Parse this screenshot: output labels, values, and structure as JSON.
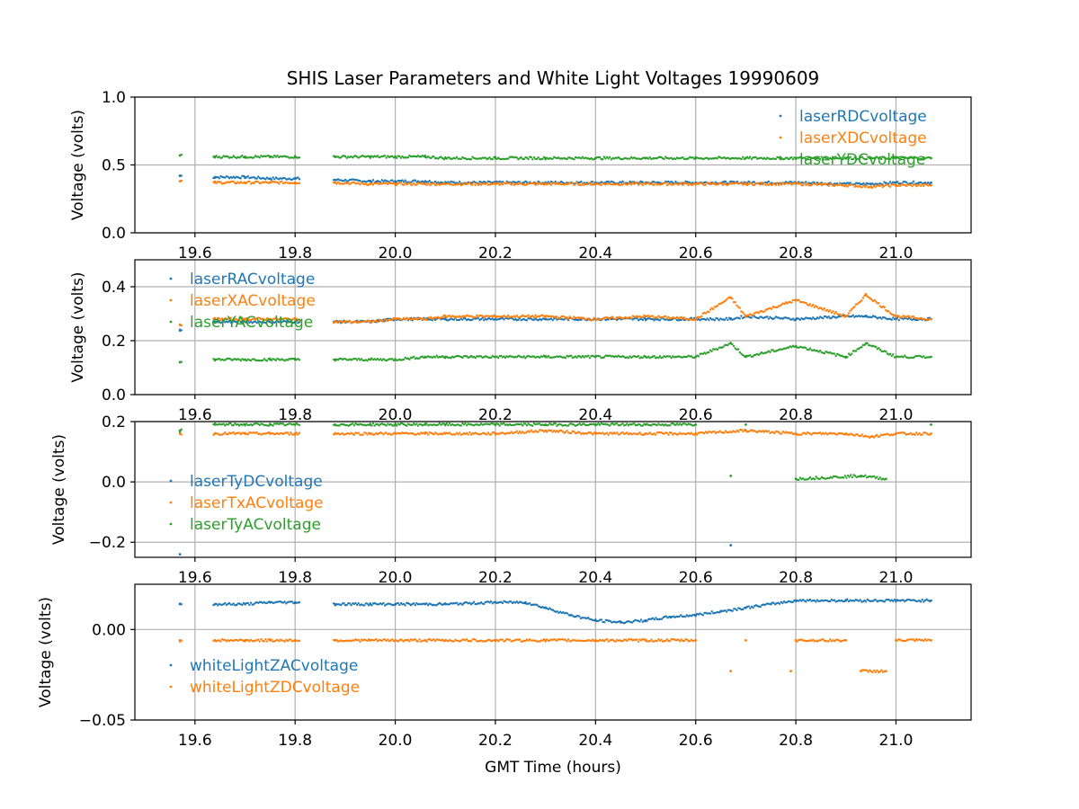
{
  "chart_data": {
    "type": "scatter",
    "title": "SHIS Laser Parameters and White Light Voltages 19990609",
    "xlabel": "GMT Time (hours)",
    "xlim": [
      19.48,
      21.15
    ],
    "xticks": [
      "19.6",
      "19.8",
      "20.0",
      "20.2",
      "20.4",
      "20.6",
      "20.8",
      "21.0"
    ],
    "xtick_values": [
      19.6,
      19.8,
      20.0,
      20.2,
      20.4,
      20.6,
      20.8,
      21.0
    ],
    "grid": true,
    "panels": [
      {
        "ylabel": "Voltage (volts)",
        "ylim": [
          0.0,
          1.0
        ],
        "yticks": [
          "0.0",
          "0.5",
          "1.0"
        ],
        "ytick_values": [
          0.0,
          0.5,
          1.0
        ],
        "legend_position": "upper-right",
        "series": [
          {
            "name": "laserRDCvoltage",
            "color": "#1f77b4",
            "x": [
              19.57,
              19.64,
              19.7,
              19.75,
              19.8,
              19.88,
              19.95,
              20.0,
              20.06,
              20.1,
              20.2,
              20.3,
              20.4,
              20.5,
              20.6,
              20.7,
              20.8,
              20.9,
              20.95,
              21.0,
              21.07
            ],
            "y": [
              0.42,
              0.41,
              0.41,
              0.4,
              0.4,
              0.39,
              0.38,
              0.38,
              0.38,
              0.37,
              0.37,
              0.37,
              0.37,
              0.37,
              0.37,
              0.37,
              0.37,
              0.36,
              0.36,
              0.37,
              0.37
            ]
          },
          {
            "name": "laserXDCvoltage",
            "color": "#ff7f0e",
            "x": [
              19.57,
              19.64,
              19.7,
              19.75,
              19.8,
              19.88,
              19.95,
              20.0,
              20.06,
              20.1,
              20.2,
              20.3,
              20.4,
              20.5,
              20.6,
              20.7,
              20.8,
              20.9,
              20.95,
              21.0,
              21.07
            ],
            "y": [
              0.38,
              0.37,
              0.37,
              0.37,
              0.37,
              0.37,
              0.36,
              0.36,
              0.36,
              0.36,
              0.36,
              0.36,
              0.36,
              0.36,
              0.36,
              0.36,
              0.36,
              0.35,
              0.34,
              0.35,
              0.35
            ]
          },
          {
            "name": "laserYDCvoltage",
            "color": "#2ca02c",
            "x": [
              19.57,
              19.64,
              19.7,
              19.75,
              19.8,
              19.88,
              19.95,
              20.0,
              20.06,
              20.1,
              20.2,
              20.3,
              20.4,
              20.5,
              20.6,
              20.7,
              20.8,
              20.9,
              20.95,
              21.0,
              21.07
            ],
            "y": [
              0.57,
              0.56,
              0.56,
              0.56,
              0.56,
              0.56,
              0.56,
              0.56,
              0.56,
              0.55,
              0.55,
              0.55,
              0.55,
              0.55,
              0.55,
              0.55,
              0.55,
              0.55,
              0.55,
              0.55,
              0.55
            ]
          }
        ]
      },
      {
        "ylabel": "Voltage (volts)",
        "ylim": [
          0.0,
          0.5
        ],
        "yticks": [
          "0.0",
          "0.2",
          "0.4"
        ],
        "ytick_values": [
          0.0,
          0.2,
          0.4
        ],
        "legend_position": "upper-left",
        "series": [
          {
            "name": "laserRACvoltage",
            "color": "#1f77b4",
            "x": [
              19.57,
              19.64,
              19.7,
              19.75,
              19.8,
              19.88,
              19.95,
              20.0,
              20.06,
              20.1,
              20.2,
              20.3,
              20.4,
              20.5,
              20.6,
              20.67,
              20.7,
              20.8,
              20.9,
              20.94,
              21.0,
              21.07
            ],
            "y": [
              0.24,
              0.27,
              0.27,
              0.27,
              0.27,
              0.27,
              0.27,
              0.28,
              0.28,
              0.28,
              0.28,
              0.28,
              0.28,
              0.28,
              0.28,
              0.28,
              0.29,
              0.28,
              0.29,
              0.29,
              0.28,
              0.28
            ]
          },
          {
            "name": "laserXACvoltage",
            "color": "#ff7f0e",
            "x": [
              19.57,
              19.64,
              19.7,
              19.75,
              19.8,
              19.88,
              19.95,
              20.0,
              20.06,
              20.1,
              20.2,
              20.3,
              20.4,
              20.5,
              20.6,
              20.67,
              20.7,
              20.8,
              20.9,
              20.94,
              21.0,
              21.07
            ],
            "y": [
              0.26,
              0.28,
              0.28,
              0.28,
              0.28,
              0.27,
              0.27,
              0.28,
              0.28,
              0.29,
              0.29,
              0.29,
              0.28,
              0.29,
              0.28,
              0.36,
              0.29,
              0.35,
              0.29,
              0.37,
              0.29,
              0.28
            ]
          },
          {
            "name": "laserYACvoltage",
            "color": "#2ca02c",
            "x": [
              19.57,
              19.64,
              19.7,
              19.75,
              19.8,
              19.88,
              19.95,
              20.0,
              20.06,
              20.1,
              20.2,
              20.3,
              20.4,
              20.5,
              20.6,
              20.67,
              20.7,
              20.8,
              20.9,
              20.94,
              21.0,
              21.07
            ],
            "y": [
              0.12,
              0.13,
              0.13,
              0.13,
              0.13,
              0.13,
              0.13,
              0.13,
              0.14,
              0.14,
              0.14,
              0.14,
              0.14,
              0.14,
              0.14,
              0.19,
              0.14,
              0.18,
              0.14,
              0.19,
              0.14,
              0.14
            ]
          }
        ]
      },
      {
        "ylabel": "Voltage (volts)",
        "ylim": [
          -0.25,
          0.2
        ],
        "yticks": [
          "−0.2",
          "0.0",
          "0.2"
        ],
        "ytick_values": [
          -0.2,
          0.0,
          0.2
        ],
        "legend_position": "lower-left",
        "series": [
          {
            "name": "laserTyDCvoltage",
            "color": "#1f77b4",
            "x": [
              19.57,
              20.67
            ],
            "y": [
              -0.24,
              -0.21
            ]
          },
          {
            "name": "laserTxACvoltage",
            "color": "#ff7f0e",
            "x": [
              19.57,
              19.64,
              19.7,
              19.75,
              19.8,
              19.88,
              19.95,
              20.0,
              20.06,
              20.1,
              20.2,
              20.3,
              20.4,
              20.5,
              20.6,
              20.7,
              20.8,
              20.9,
              20.95,
              21.0,
              21.07
            ],
            "y": [
              0.16,
              0.16,
              0.16,
              0.16,
              0.16,
              0.16,
              0.16,
              0.16,
              0.16,
              0.16,
              0.16,
              0.17,
              0.16,
              0.16,
              0.16,
              0.17,
              0.16,
              0.16,
              0.15,
              0.16,
              0.16
            ]
          },
          {
            "name": "laserTyACvoltage",
            "color": "#2ca02c",
            "x": [
              19.57,
              19.64,
              19.7,
              19.75,
              19.8,
              19.88,
              19.95,
              20.0,
              20.06,
              20.1,
              20.2,
              20.3,
              20.4,
              20.5,
              20.6,
              20.67,
              20.7,
              20.8,
              20.93,
              20.98,
              21.07
            ],
            "y": [
              0.17,
              0.19,
              0.19,
              0.19,
              0.19,
              0.19,
              0.19,
              0.19,
              0.19,
              0.19,
              0.19,
              0.19,
              0.19,
              0.19,
              0.19,
              0.02,
              0.19,
              0.01,
              0.02,
              0.01,
              0.19
            ]
          }
        ]
      },
      {
        "ylabel": "Voltage (volts)",
        "ylim": [
          -0.05,
          0.025
        ],
        "yticks": [
          "−0.05",
          "0.00"
        ],
        "ytick_values": [
          -0.05,
          0.0
        ],
        "legend_position": "lower-left",
        "series": [
          {
            "name": "whiteLightZACvoltage",
            "color": "#1f77b4",
            "x": [
              19.57,
              19.64,
              19.7,
              19.75,
              19.8,
              19.88,
              19.95,
              20.0,
              20.06,
              20.1,
              20.2,
              20.26,
              20.3,
              20.35,
              20.4,
              20.45,
              20.5,
              20.55,
              20.6,
              20.65,
              20.7,
              20.75,
              20.8,
              20.9,
              21.0,
              21.07
            ],
            "y": [
              0.014,
              0.014,
              0.014,
              0.015,
              0.015,
              0.014,
              0.014,
              0.014,
              0.014,
              0.014,
              0.015,
              0.015,
              0.012,
              0.008,
              0.005,
              0.004,
              0.005,
              0.007,
              0.008,
              0.01,
              0.012,
              0.014,
              0.016,
              0.016,
              0.016,
              0.016
            ]
          },
          {
            "name": "whiteLightZDCvoltage",
            "color": "#ff7f0e",
            "x": [
              19.57,
              19.64,
              19.7,
              19.75,
              19.8,
              19.88,
              19.95,
              20.0,
              20.06,
              20.1,
              20.2,
              20.3,
              20.4,
              20.5,
              20.6,
              20.67,
              20.7,
              20.79,
              20.8,
              20.9,
              20.93,
              20.98,
              21.0,
              21.07
            ],
            "y": [
              -0.006,
              -0.006,
              -0.006,
              -0.006,
              -0.006,
              -0.006,
              -0.006,
              -0.006,
              -0.006,
              -0.006,
              -0.006,
              -0.006,
              -0.006,
              -0.006,
              -0.006,
              -0.023,
              -0.006,
              -0.023,
              -0.006,
              -0.006,
              -0.023,
              -0.023,
              -0.006,
              -0.006
            ]
          }
        ]
      }
    ]
  }
}
